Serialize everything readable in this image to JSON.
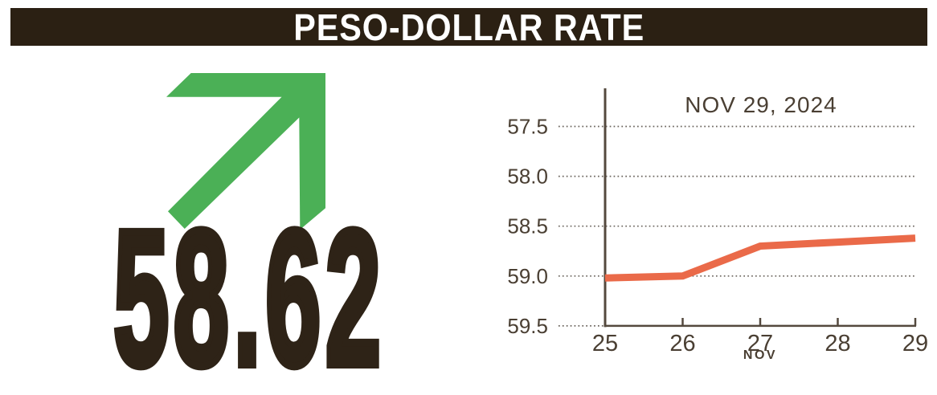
{
  "header": {
    "title": "PESO-DOLLAR RATE",
    "bar_color": "#2b2013",
    "text_color": "#ffffff"
  },
  "indicator": {
    "value": "58.62",
    "direction": "up",
    "arrow_color": "#4bb056",
    "value_color": "#2e2317"
  },
  "chart_data": {
    "type": "line",
    "title": "NOV 29, 2024",
    "x_axis_label": "NOV",
    "x_ticks": [
      "25",
      "26",
      "27",
      "28",
      "29"
    ],
    "y_ticks": [
      "57.5",
      "58.0",
      "58.5",
      "59.0",
      "59.5"
    ],
    "ylim": [
      57.5,
      59.5
    ],
    "y_axis_inverted": true,
    "grid": "horizontal-dotted",
    "legend": "none",
    "series": [
      {
        "name": "peso-dollar exchange rate",
        "values": [
          59.02,
          59.0,
          58.7,
          58.66,
          58.62
        ]
      }
    ],
    "line_color": "#ea6a49",
    "axis_color": "#54493e"
  }
}
